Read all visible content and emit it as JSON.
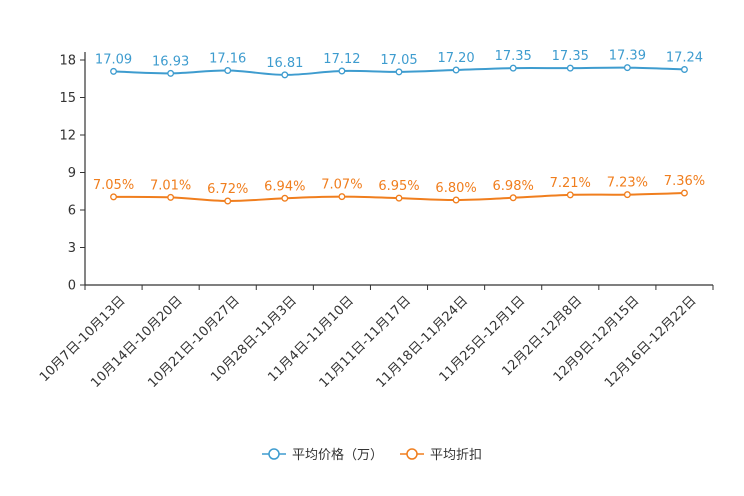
{
  "chart_data": {
    "type": "line",
    "categories": [
      "10月7日-10月13日",
      "10月14日-10月20日",
      "10月21日-10月27日",
      "10月28日-11月3日",
      "11月4日-11月10日",
      "11月11日-11月17日",
      "11月18日-11月24日",
      "11月25日-12月1日",
      "12月2日-12月8日",
      "12月9日-12月15日",
      "12月16日-12月22日"
    ],
    "y_ticks": [
      "0",
      "3",
      "6",
      "9",
      "12",
      "15",
      "18"
    ],
    "ylim": [
      0,
      18
    ],
    "series": [
      {
        "name": "平均价格（万）",
        "color": "#3e9ccf",
        "values": [
          17.09,
          16.93,
          17.16,
          16.81,
          17.12,
          17.05,
          17.2,
          17.35,
          17.35,
          17.39,
          17.24
        ],
        "labels": [
          "17.09",
          "16.93",
          "17.16",
          "16.81",
          "17.12",
          "17.05",
          "17.20",
          "17.35",
          "17.35",
          "17.39",
          "17.24"
        ]
      },
      {
        "name": "平均折扣",
        "color": "#f07e1e",
        "values": [
          7.05,
          7.01,
          6.72,
          6.94,
          7.07,
          6.95,
          6.8,
          6.98,
          7.21,
          7.23,
          7.36
        ],
        "labels": [
          "7.05%",
          "7.01%",
          "6.72%",
          "6.94%",
          "7.07%",
          "6.95%",
          "6.80%",
          "6.98%",
          "7.21%",
          "7.23%",
          "7.36%"
        ]
      }
    ],
    "legend_position": "bottom-center",
    "grid": false
  }
}
